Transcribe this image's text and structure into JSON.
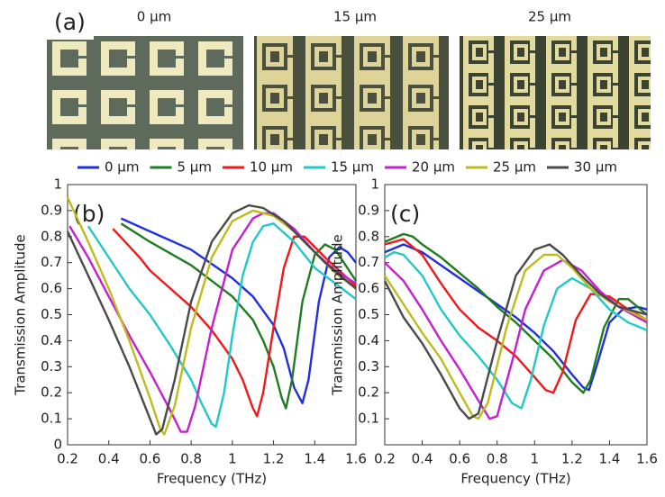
{
  "panel_a": {
    "label": "(a)",
    "images": [
      "0 μm",
      "15 μm",
      "25 μm"
    ]
  },
  "chart_data": [
    {
      "type": "line",
      "panel_label": "(b)",
      "x_label": "Frequency (THz)",
      "y_label": "Transmission Amplitude",
      "xlim": [
        0.2,
        1.6
      ],
      "xticks": [
        0.2,
        0.4,
        0.6,
        0.8,
        1,
        1.2,
        1.4,
        1.6
      ],
      "ylim": [
        0,
        1
      ],
      "yticks": [
        0,
        0.1,
        0.2,
        0.3,
        0.4,
        0.5,
        0.6,
        0.7,
        0.8,
        0.9,
        1
      ],
      "series": [
        {
          "name": "0 μm",
          "color": "#1f2fe0",
          "x": [
            0.46,
            0.6,
            0.8,
            1.0,
            1.1,
            1.2,
            1.25,
            1.3,
            1.34,
            1.37,
            1.42,
            1.47,
            1.52,
            1.56,
            1.6
          ],
          "values": [
            0.87,
            0.82,
            0.75,
            0.64,
            0.57,
            0.46,
            0.37,
            0.22,
            0.16,
            0.25,
            0.55,
            0.72,
            0.76,
            0.74,
            0.7
          ]
        },
        {
          "name": "5 μm",
          "color": "#1e7d1e",
          "x": [
            0.46,
            0.6,
            0.8,
            1.0,
            1.1,
            1.15,
            1.2,
            1.24,
            1.26,
            1.29,
            1.34,
            1.4,
            1.45,
            1.5,
            1.6
          ],
          "values": [
            0.85,
            0.78,
            0.69,
            0.57,
            0.48,
            0.4,
            0.3,
            0.18,
            0.14,
            0.25,
            0.55,
            0.73,
            0.77,
            0.75,
            0.63
          ]
        },
        {
          "name": "10 μm",
          "color": "#f01818",
          "x": [
            0.42,
            0.55,
            0.6,
            0.7,
            0.8,
            0.9,
            1.0,
            1.05,
            1.1,
            1.12,
            1.15,
            1.2,
            1.25,
            1.3,
            1.35,
            1.45,
            1.6
          ],
          "values": [
            0.83,
            0.72,
            0.67,
            0.6,
            0.53,
            0.44,
            0.33,
            0.25,
            0.14,
            0.11,
            0.2,
            0.45,
            0.68,
            0.8,
            0.8,
            0.72,
            0.61
          ]
        },
        {
          "name": "15 μm",
          "color": "#22c8c8",
          "x": [
            0.3,
            0.4,
            0.5,
            0.6,
            0.7,
            0.8,
            0.85,
            0.9,
            0.92,
            0.96,
            1.0,
            1.05,
            1.1,
            1.15,
            1.2,
            1.3,
            1.4,
            1.5,
            1.6
          ],
          "values": [
            0.84,
            0.72,
            0.6,
            0.5,
            0.38,
            0.25,
            0.16,
            0.08,
            0.07,
            0.2,
            0.42,
            0.65,
            0.78,
            0.84,
            0.85,
            0.78,
            0.68,
            0.62,
            0.56
          ]
        },
        {
          "name": "20 μm",
          "color": "#c81ed2",
          "x": [
            0.21,
            0.3,
            0.4,
            0.5,
            0.6,
            0.7,
            0.75,
            0.78,
            0.82,
            0.9,
            1.0,
            1.1,
            1.15,
            1.2,
            1.3,
            1.4,
            1.5,
            1.6
          ],
          "values": [
            0.84,
            0.72,
            0.57,
            0.42,
            0.28,
            0.13,
            0.05,
            0.05,
            0.15,
            0.45,
            0.75,
            0.87,
            0.89,
            0.89,
            0.83,
            0.74,
            0.67,
            0.62
          ]
        },
        {
          "name": "25 μm",
          "color": "#bcbc1c",
          "x": [
            0.2,
            0.3,
            0.4,
            0.5,
            0.6,
            0.65,
            0.67,
            0.72,
            0.8,
            0.9,
            1.0,
            1.1,
            1.2,
            1.3,
            1.4,
            1.5,
            1.6
          ],
          "values": [
            0.95,
            0.78,
            0.6,
            0.4,
            0.18,
            0.06,
            0.04,
            0.15,
            0.45,
            0.72,
            0.86,
            0.9,
            0.88,
            0.82,
            0.74,
            0.66,
            0.6
          ]
        },
        {
          "name": "30 μm",
          "color": "#4a4a4a",
          "x": [
            0.2,
            0.3,
            0.4,
            0.5,
            0.6,
            0.63,
            0.66,
            0.72,
            0.8,
            0.9,
            1.0,
            1.08,
            1.15,
            1.25,
            1.35,
            1.45,
            1.6
          ],
          "values": [
            0.82,
            0.65,
            0.48,
            0.3,
            0.1,
            0.04,
            0.06,
            0.25,
            0.55,
            0.78,
            0.89,
            0.92,
            0.91,
            0.86,
            0.78,
            0.7,
            0.6
          ]
        }
      ]
    },
    {
      "type": "line",
      "panel_label": "(c)",
      "x_label": "Frequency (THz)",
      "y_label": "Transmission Amplitude",
      "xlim": [
        0.2,
        1.6
      ],
      "xticks": [
        0.2,
        0.4,
        0.6,
        0.8,
        1,
        1.2,
        1.4,
        1.6
      ],
      "ylim": [
        0,
        1
      ],
      "yticks": [
        0.1,
        0.2,
        0.3,
        0.4,
        0.5,
        0.6,
        0.7,
        0.8,
        0.9,
        1
      ],
      "series": [
        {
          "color": "#1f2fe0",
          "x": [
            0.2,
            0.3,
            0.4,
            0.5,
            0.6,
            0.7,
            0.8,
            0.9,
            1.0,
            1.1,
            1.2,
            1.26,
            1.29,
            1.33,
            1.4,
            1.47,
            1.55,
            1.6
          ],
          "values": [
            0.74,
            0.77,
            0.74,
            0.69,
            0.64,
            0.59,
            0.54,
            0.49,
            0.43,
            0.36,
            0.27,
            0.22,
            0.21,
            0.3,
            0.47,
            0.52,
            0.53,
            0.52
          ]
        },
        {
          "color": "#1e7d1e",
          "x": [
            0.2,
            0.3,
            0.35,
            0.4,
            0.5,
            0.6,
            0.7,
            0.8,
            0.9,
            1.0,
            1.1,
            1.2,
            1.26,
            1.3,
            1.37,
            1.45,
            1.5,
            1.6
          ],
          "values": [
            0.78,
            0.81,
            0.8,
            0.77,
            0.72,
            0.66,
            0.6,
            0.53,
            0.47,
            0.4,
            0.33,
            0.24,
            0.2,
            0.25,
            0.45,
            0.56,
            0.56,
            0.5
          ]
        },
        {
          "color": "#f01818",
          "x": [
            0.2,
            0.3,
            0.4,
            0.5,
            0.6,
            0.7,
            0.8,
            0.9,
            1.0,
            1.06,
            1.1,
            1.15,
            1.22,
            1.3,
            1.4,
            1.5,
            1.6
          ],
          "values": [
            0.77,
            0.79,
            0.73,
            0.62,
            0.52,
            0.45,
            0.4,
            0.34,
            0.26,
            0.21,
            0.2,
            0.28,
            0.48,
            0.58,
            0.57,
            0.52,
            0.48
          ]
        },
        {
          "color": "#22c8c8",
          "x": [
            0.2,
            0.25,
            0.3,
            0.4,
            0.5,
            0.6,
            0.7,
            0.8,
            0.88,
            0.93,
            0.98,
            1.05,
            1.12,
            1.2,
            1.3,
            1.4,
            1.5,
            1.6
          ],
          "values": [
            0.72,
            0.74,
            0.73,
            0.65,
            0.52,
            0.42,
            0.34,
            0.25,
            0.16,
            0.14,
            0.25,
            0.46,
            0.6,
            0.64,
            0.6,
            0.52,
            0.47,
            0.44
          ]
        },
        {
          "color": "#c81ed2",
          "x": [
            0.2,
            0.3,
            0.4,
            0.5,
            0.6,
            0.7,
            0.76,
            0.8,
            0.88,
            0.95,
            1.05,
            1.15,
            1.25,
            1.35,
            1.45,
            1.6
          ],
          "values": [
            0.7,
            0.63,
            0.52,
            0.4,
            0.29,
            0.17,
            0.1,
            0.11,
            0.32,
            0.52,
            0.67,
            0.71,
            0.67,
            0.59,
            0.53,
            0.47
          ]
        },
        {
          "color": "#bcbc1c",
          "x": [
            0.2,
            0.3,
            0.4,
            0.5,
            0.6,
            0.67,
            0.7,
            0.75,
            0.85,
            0.95,
            1.05,
            1.12,
            1.2,
            1.3,
            1.4,
            1.6
          ],
          "values": [
            0.65,
            0.54,
            0.43,
            0.33,
            0.2,
            0.11,
            0.1,
            0.16,
            0.45,
            0.67,
            0.73,
            0.73,
            0.68,
            0.6,
            0.55,
            0.48
          ]
        },
        {
          "color": "#4a4a4a",
          "x": [
            0.2,
            0.3,
            0.4,
            0.5,
            0.6,
            0.65,
            0.7,
            0.8,
            0.9,
            1.0,
            1.08,
            1.15,
            1.25,
            1.35,
            1.45,
            1.6
          ],
          "values": [
            0.63,
            0.49,
            0.39,
            0.27,
            0.14,
            0.1,
            0.12,
            0.4,
            0.65,
            0.75,
            0.77,
            0.73,
            0.65,
            0.58,
            0.53,
            0.5
          ]
        }
      ]
    }
  ]
}
